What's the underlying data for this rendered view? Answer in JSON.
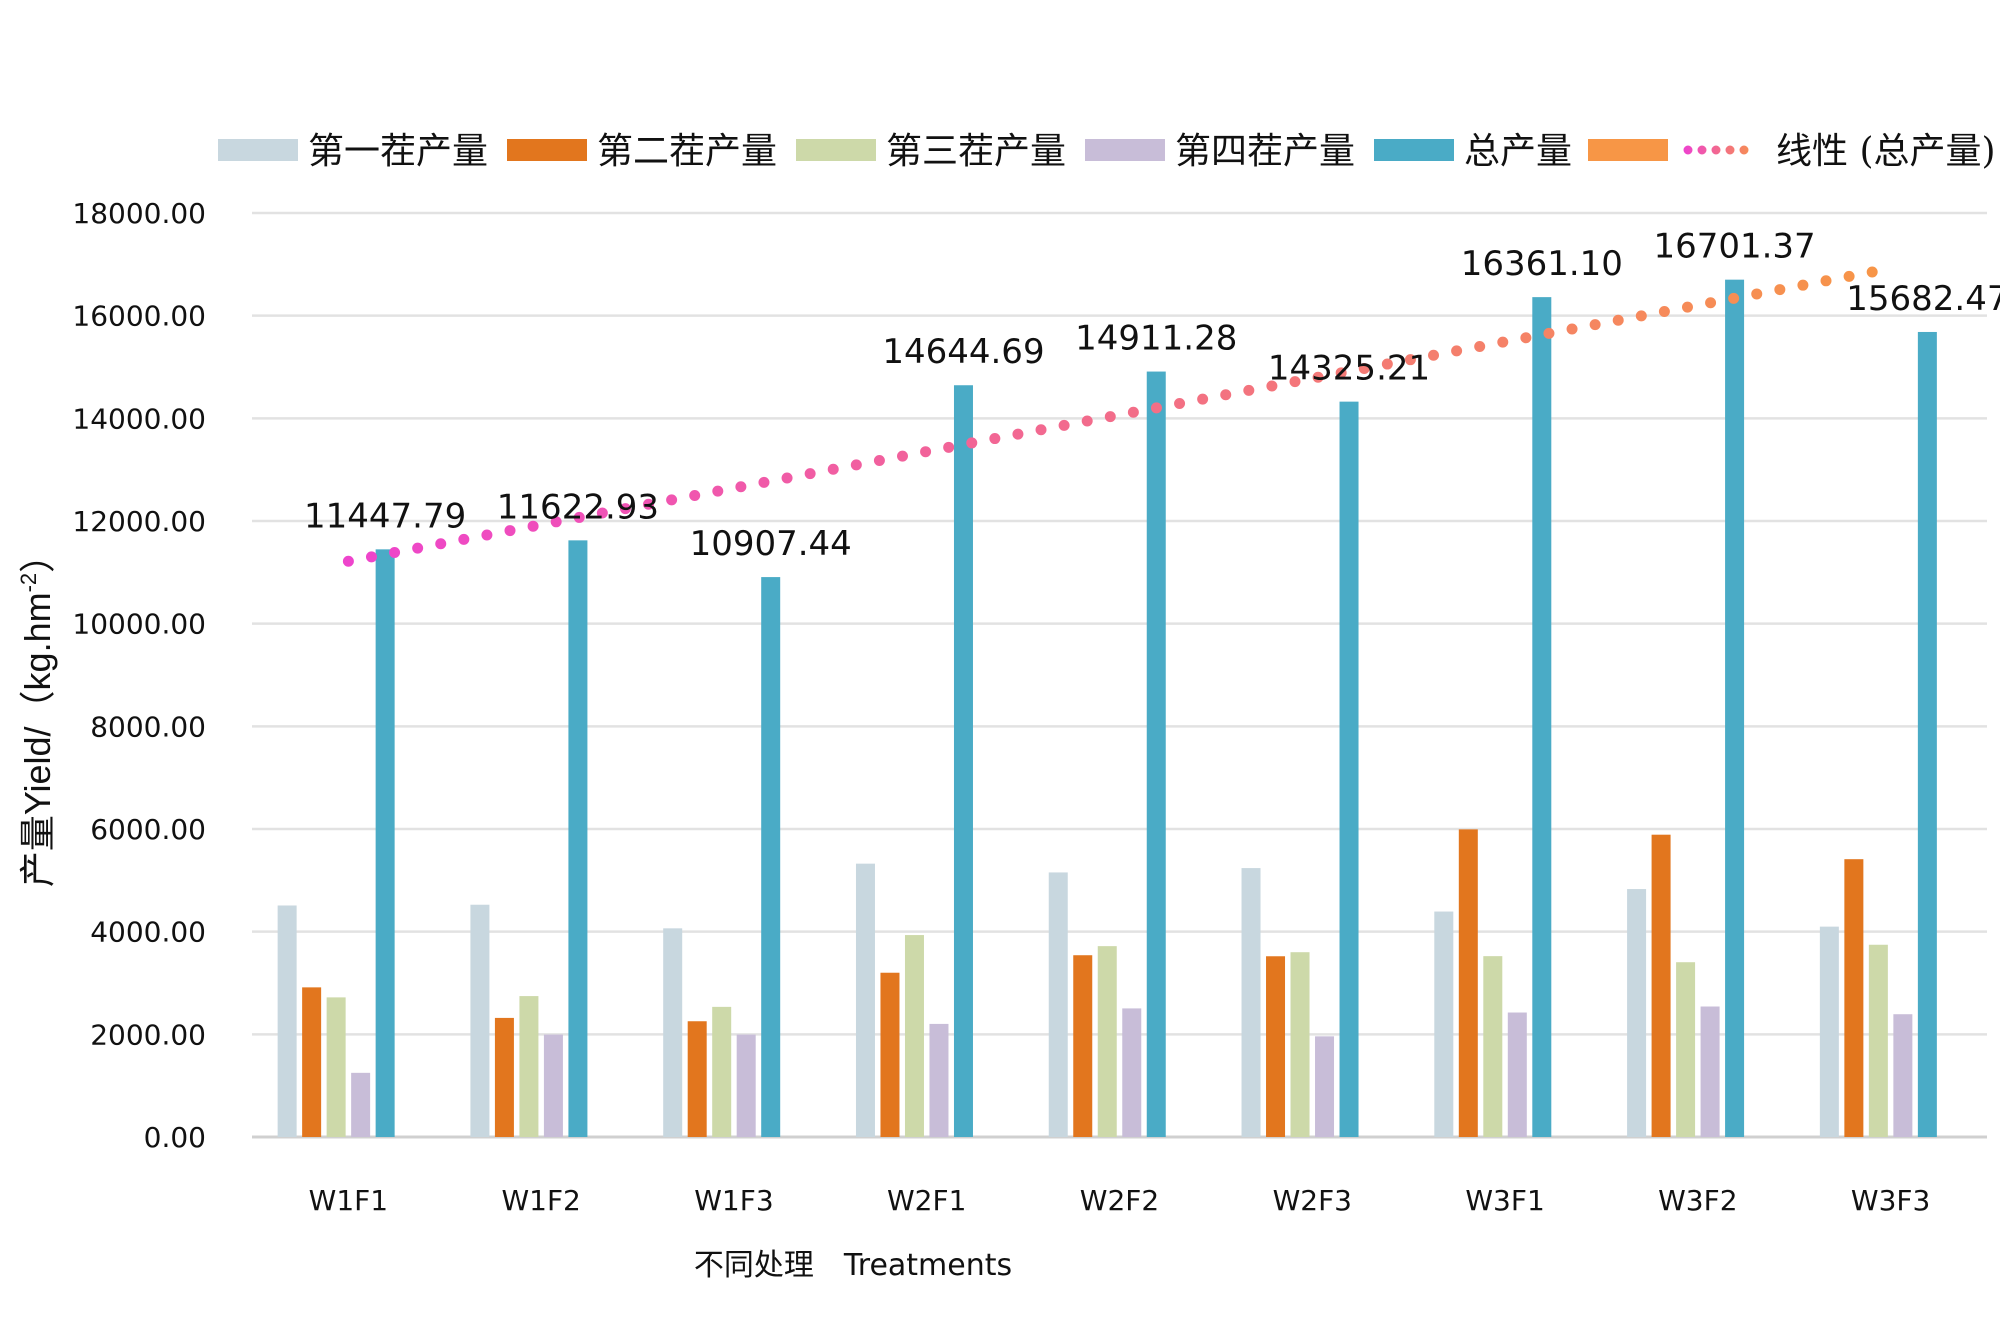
{
  "chart_data": {
    "type": "bar",
    "title": "",
    "xlabel": "不同处理　Treatments",
    "ylabel": "产量Yield/（kg.hm-2）",
    "ylabel_parts": {
      "main": "产量Yield/（kg.hm",
      "sup": "-2",
      "end": "）"
    },
    "ylim": [
      0,
      18000
    ],
    "yticks": [
      0,
      2000,
      4000,
      6000,
      8000,
      10000,
      12000,
      14000,
      16000,
      18000
    ],
    "ytick_labels": [
      "0.00",
      "2000.00",
      "4000.00",
      "6000.00",
      "8000.00",
      "10000.00",
      "12000.00",
      "14000.00",
      "16000.00",
      "18000.00"
    ],
    "grid": true,
    "legend_position": "top",
    "categories": [
      "W1F1",
      "W1F2",
      "W1F3",
      "W2F1",
      "W2F2",
      "W2F3",
      "W3F1",
      "W3F2",
      "W3F3"
    ],
    "series": [
      {
        "name": "第一茬产量",
        "color": "#c8d7df",
        "values": [
          4510,
          4525,
          4065,
          5325,
          5154,
          5239,
          4392,
          4830,
          4098
        ]
      },
      {
        "name": "第二茬产量",
        "color": "#e2761e",
        "values": [
          2915,
          2320,
          2255,
          3200,
          3541,
          3521,
          5993,
          5889,
          5412
        ]
      },
      {
        "name": "第三茬产量",
        "color": "#cdd9a9",
        "values": [
          2720,
          2745,
          2535,
          3934,
          3718,
          3600,
          3523,
          3405,
          3745
        ]
      },
      {
        "name": "第四茬产量",
        "color": "#c8bdd8",
        "values": [
          1250,
          1995,
          1995,
          2203,
          2505,
          1961,
          2425,
          2542,
          2392
        ]
      },
      {
        "name": "总产量",
        "color": "#4aabc6",
        "values": [
          11447.79,
          11622.93,
          10907.44,
          14644.69,
          14911.28,
          14325.21,
          16361.1,
          16701.37,
          15682.47
        ],
        "data_labels": [
          "11447.79",
          "11622.93",
          "10907.44",
          "14644.69",
          "14911.28",
          "14325.21",
          "16361.10",
          "16701.37",
          "15682.47"
        ]
      },
      {
        "name": "",
        "color": "#f79646",
        "values": []
      }
    ],
    "trendline": {
      "name": "线性 (总产量)",
      "type": "linear",
      "of_series": "总产量",
      "start_value": 11216,
      "end_value": 16918,
      "color_start": "#ee44cc",
      "color_end": "#f79646",
      "style": "dotted"
    }
  }
}
